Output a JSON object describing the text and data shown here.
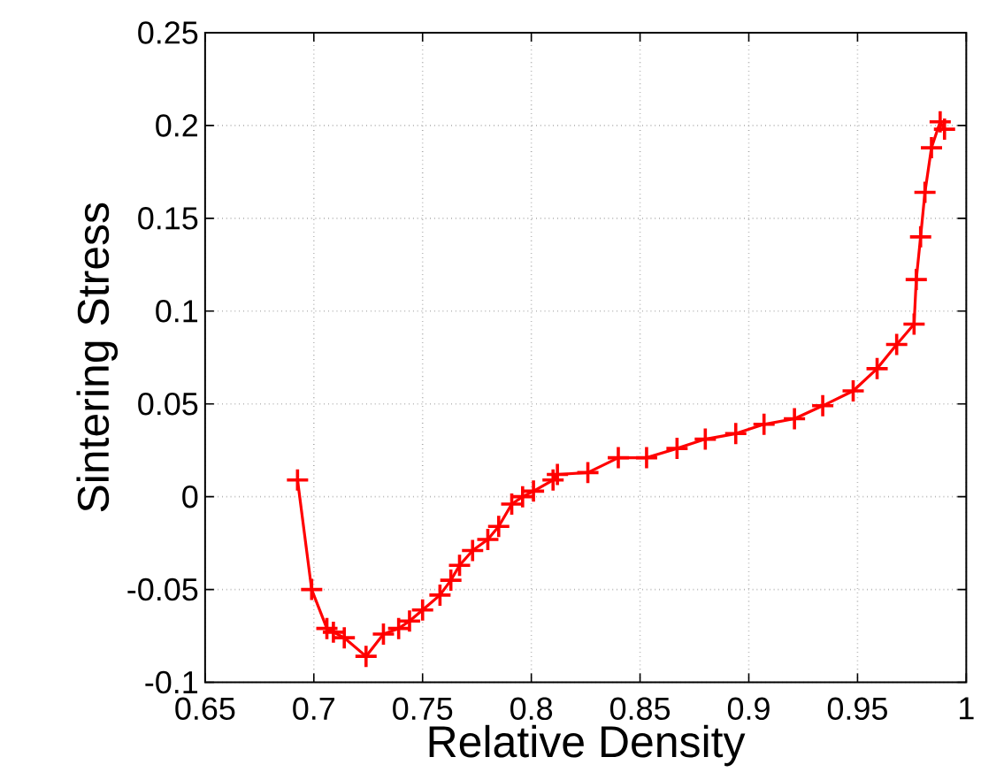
{
  "chart_data": {
    "type": "line",
    "xlabel": "Relative Density",
    "ylabel": "Sintering Stress",
    "xlim": [
      0.65,
      1
    ],
    "ylim": [
      -0.1,
      0.25
    ],
    "xticks": [
      0.65,
      0.7,
      0.75,
      0.8,
      0.85,
      0.9,
      0.95,
      1
    ],
    "yticks": [
      -0.1,
      -0.05,
      0,
      0.05,
      0.1,
      0.15,
      0.2,
      0.25
    ],
    "grid": true,
    "marker": "cross",
    "line_style": "solid",
    "x": [
      0.6925,
      0.699,
      0.706,
      0.709,
      0.714,
      0.724,
      0.732,
      0.739,
      0.744,
      0.75,
      0.758,
      0.763,
      0.767,
      0.773,
      0.78,
      0.785,
      0.791,
      0.796,
      0.801,
      0.81,
      0.812,
      0.826,
      0.84,
      0.853,
      0.867,
      0.88,
      0.894,
      0.907,
      0.921,
      0.934,
      0.948,
      0.959,
      0.968,
      0.976,
      0.977,
      0.979,
      0.981,
      0.984,
      0.988,
      0.99
    ],
    "values": [
      0.009,
      -0.05,
      -0.071,
      -0.073,
      -0.076,
      -0.086,
      -0.074,
      -0.071,
      -0.067,
      -0.061,
      -0.053,
      -0.045,
      -0.037,
      -0.029,
      -0.023,
      -0.016,
      -0.004,
      0.0,
      0.003,
      0.009,
      0.012,
      0.013,
      0.021,
      0.021,
      0.026,
      0.031,
      0.034,
      0.039,
      0.042,
      0.049,
      0.057,
      0.069,
      0.082,
      0.093,
      0.117,
      0.14,
      0.164,
      0.188,
      0.202,
      0.198
    ],
    "color": "#ff0000"
  }
}
